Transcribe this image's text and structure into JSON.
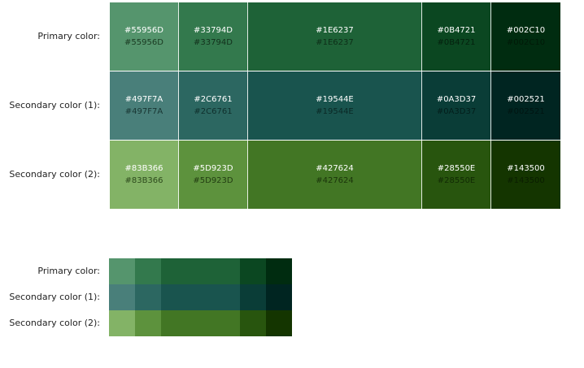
{
  "big_grid": {
    "rows": [
      {
        "label": "Primary color:",
        "swatches": [
          {
            "hex": "#55956D",
            "top": "#55956D",
            "bottom": "#55956D",
            "bottom_color": "#1a3a22"
          },
          {
            "hex": "#33794D",
            "top": "#33794D",
            "bottom": "#33794D",
            "bottom_color": "#12301c"
          },
          {
            "hex": "#1E6237",
            "top": "#1E6237",
            "bottom": "#1E6237",
            "bottom_color": "#0d2e18"
          },
          {
            "hex": "#0B4721",
            "top": "#0B4721",
            "bottom": "#0B4721",
            "bottom_color": "#04210e"
          },
          {
            "hex": "#002C10",
            "top": "#002C10",
            "bottom": "#002C10",
            "bottom_color": "#001a08"
          }
        ]
      },
      {
        "label": "Secondary color (1):",
        "swatches": [
          {
            "hex": "#497F7A",
            "top": "#497F7A",
            "bottom": "#497F7A",
            "bottom_color": "#183532"
          },
          {
            "hex": "#2C6761",
            "top": "#2C6761",
            "bottom": "#2C6761",
            "bottom_color": "#0f2f2c"
          },
          {
            "hex": "#19544E",
            "top": "#19544E",
            "bottom": "#19544E",
            "bottom_color": "#0a2825"
          },
          {
            "hex": "#0A3D37",
            "top": "#0A3D37",
            "bottom": "#0A3D37",
            "bottom_color": "#031e1b"
          },
          {
            "hex": "#002521",
            "top": "#002521",
            "bottom": "#002521",
            "bottom_color": "#001512"
          }
        ]
      },
      {
        "label": "Secondary color (2):",
        "swatches": [
          {
            "hex": "#83B366",
            "top": "#83B366",
            "bottom": "#83B366",
            "bottom_color": "#2d4a1c"
          },
          {
            "hex": "#5D923D",
            "top": "#5D923D",
            "bottom": "#5D923D",
            "bottom_color": "#223d12"
          },
          {
            "hex": "#427624",
            "top": "#427624",
            "bottom": "#427624",
            "bottom_color": "#1a340a"
          },
          {
            "hex": "#28550E",
            "top": "#28550E",
            "bottom": "#28550E",
            "bottom_color": "#112a04"
          },
          {
            "hex": "#143500",
            "top": "#143500",
            "bottom": "#143500",
            "bottom_color": "#0a1d00"
          }
        ]
      }
    ]
  },
  "small_grid": {
    "rows": [
      {
        "label": "Primary color:",
        "swatches": [
          "#55956D",
          "#33794D",
          "#1E6237",
          "#0B4721",
          "#002C10"
        ]
      },
      {
        "label": "Secondary color (1):",
        "swatches": [
          "#497F7A",
          "#2C6761",
          "#19544E",
          "#0A3D37",
          "#002521"
        ]
      },
      {
        "label": "Secondary color (2):",
        "swatches": [
          "#83B366",
          "#5D923D",
          "#427624",
          "#28550E",
          "#143500"
        ]
      }
    ]
  }
}
